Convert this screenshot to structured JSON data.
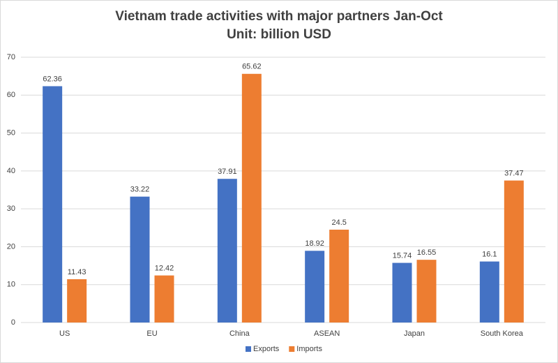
{
  "chart_data": {
    "type": "bar",
    "title": "Vietnam trade activities with major partners Jan-Oct",
    "subtitle": "Unit: billion USD",
    "categories": [
      "US",
      "EU",
      "China",
      "ASEAN",
      "Japan",
      "South Korea"
    ],
    "series": [
      {
        "name": "Exports",
        "color": "#4472c4",
        "values": [
          62.36,
          33.22,
          37.91,
          18.92,
          15.74,
          16.1
        ]
      },
      {
        "name": "Imports",
        "color": "#ed7d31",
        "values": [
          11.43,
          12.42,
          65.62,
          24.5,
          16.55,
          37.47
        ]
      }
    ],
    "ylim": [
      0,
      70
    ],
    "yticks": [
      0,
      10,
      20,
      30,
      40,
      50,
      60,
      70
    ],
    "grid": true,
    "legend": "bottom"
  }
}
